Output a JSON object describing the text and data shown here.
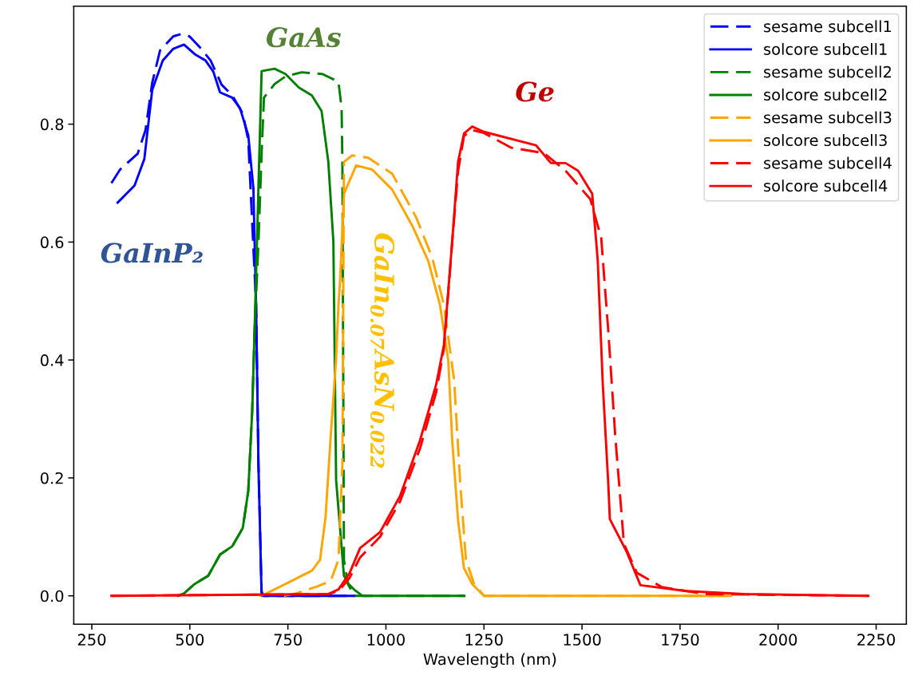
{
  "chart_data": {
    "type": "line",
    "xlabel": "Wavelength (nm)",
    "xlim": [
      204,
      2327
    ],
    "xticks": [
      250,
      500,
      750,
      1000,
      1250,
      1500,
      1750,
      2000,
      2250
    ],
    "ylim": [
      -0.048,
      1.0
    ],
    "yticks": [
      {
        "value": 0,
        "label": "0.0"
      },
      0.2,
      0.4,
      0.6,
      0.8
    ],
    "grid": false,
    "legend": "top right",
    "annotations": [
      "GaInP₂",
      "GaAs",
      "GaIn$_{0.07}$AsN$_{0.022}$",
      "Ge"
    ],
    "series": [
      {
        "name": "sesame subcell1",
        "color": "#0000ff",
        "line_style": "dashed",
        "x": [
          300,
          322,
          367,
          387,
          404,
          424,
          458,
          479,
          499,
          526,
          553,
          581,
          608,
          635,
          649,
          669,
          675,
          683,
          689,
          920
        ],
        "values": [
          0.7,
          0.723,
          0.75,
          0.79,
          0.87,
          0.925,
          0.949,
          0.953,
          0.949,
          0.93,
          0.908,
          0.867,
          0.849,
          0.818,
          0.773,
          0.493,
          0.223,
          0.007,
          0,
          0
        ]
      },
      {
        "name": "solcore subcell1",
        "color": "#0000ff",
        "line_style": "solid",
        "x": [
          316,
          359,
          384,
          404,
          431,
          458,
          485,
          512,
          540,
          560,
          577,
          608,
          628,
          649,
          662,
          669,
          675,
          683,
          920
        ],
        "values": [
          0.667,
          0.696,
          0.741,
          0.858,
          0.908,
          0.928,
          0.935,
          0.919,
          0.908,
          0.889,
          0.854,
          0.845,
          0.827,
          0.781,
          0.692,
          0.49,
          0.22,
          0,
          0
        ]
      },
      {
        "name": "sesame subcell2",
        "color": "#008000",
        "line_style": "dashed",
        "x": [
          470,
          485,
          512,
          547,
          577,
          608,
          635,
          649,
          659,
          665,
          675,
          683,
          689,
          716,
          744,
          785,
          838,
          879,
          887,
          889,
          893,
          903,
          920,
          1050,
          1200
        ],
        "values": [
          0,
          0.004,
          0.02,
          0.034,
          0.07,
          0.084,
          0.115,
          0.178,
          0.313,
          0.449,
          0.6,
          0.75,
          0.845,
          0.868,
          0.881,
          0.888,
          0.885,
          0.872,
          0.827,
          0.736,
          0.061,
          0.02,
          0,
          0,
          0
        ]
      },
      {
        "name": "solcore subcell2",
        "color": "#008000",
        "line_style": "solid",
        "x": [
          470,
          485,
          512,
          547,
          577,
          608,
          635,
          649,
          659,
          665,
          683,
          716,
          744,
          778,
          811,
          836,
          853,
          866,
          873,
          893,
          905,
          920,
          940,
          1050,
          1200
        ],
        "values": [
          0,
          0.004,
          0.02,
          0.034,
          0.07,
          0.084,
          0.115,
          0.178,
          0.313,
          0.449,
          0.89,
          0.894,
          0.885,
          0.862,
          0.849,
          0.822,
          0.737,
          0.601,
          0.196,
          0.034,
          0.02,
          0.01,
          0,
          0,
          0
        ]
      },
      {
        "name": "sesame subcell3",
        "color": "#ffa500",
        "line_style": "dashed",
        "x": [
          740,
          771,
          825,
          859,
          879,
          889,
          893,
          914,
          955,
          1016,
          1077,
          1118,
          1148,
          1174,
          1189,
          1204,
          1225,
          1250,
          1880
        ],
        "values": [
          0,
          0.004,
          0.016,
          0.025,
          0.061,
          0.223,
          0.736,
          0.747,
          0.743,
          0.716,
          0.642,
          0.574,
          0.493,
          0.365,
          0.196,
          0.061,
          0.02,
          0,
          0
        ]
      },
      {
        "name": "solcore subcell3",
        "color": "#ffa500",
        "line_style": "solid",
        "x": [
          680,
          695,
          744,
          791,
          812,
          832,
          846,
          859,
          873,
          879,
          883,
          893,
          924,
          965,
          1016,
          1067,
          1108,
          1138,
          1159,
          1169,
          1184,
          1199,
          1220,
          1250,
          1880
        ],
        "values": [
          0,
          0.004,
          0.02,
          0.036,
          0.043,
          0.061,
          0.133,
          0.268,
          0.403,
          0.493,
          0.534,
          0.682,
          0.73,
          0.723,
          0.689,
          0.628,
          0.568,
          0.493,
          0.399,
          0.264,
          0.128,
          0.047,
          0.02,
          0,
          0
        ]
      },
      {
        "name": "sesame subcell4",
        "color": "#ff0000",
        "line_style": "dashed",
        "x": [
          300,
          853,
          879,
          907,
          934,
          985,
          1036,
          1087,
          1128,
          1148,
          1169,
          1184,
          1199,
          1220,
          1250,
          1320,
          1403,
          1458,
          1521,
          1549,
          1567,
          1585,
          1607,
          1640,
          1703,
          1813,
          2230
        ],
        "values": [
          0,
          0.003,
          0.008,
          0.03,
          0.065,
          0.1,
          0.16,
          0.25,
          0.345,
          0.42,
          0.6,
          0.72,
          0.78,
          0.79,
          0.785,
          0.76,
          0.751,
          0.721,
          0.673,
          0.607,
          0.449,
          0.269,
          0.088,
          0.039,
          0.015,
          0.003,
          0
        ]
      },
      {
        "name": "solcore subcell4",
        "color": "#ff0000",
        "line_style": "solid",
        "x": [
          300,
          853,
          879,
          907,
          934,
          985,
          1036,
          1087,
          1128,
          1148,
          1169,
          1184,
          1199,
          1220,
          1250,
          1383,
          1413,
          1421,
          1458,
          1490,
          1526,
          1540,
          1553,
          1567,
          1571,
          1613,
          1649,
          1767,
          1913,
          2230
        ],
        "values": [
          0,
          0.003,
          0.011,
          0.038,
          0.081,
          0.108,
          0.169,
          0.264,
          0.358,
          0.426,
          0.601,
          0.736,
          0.784,
          0.796,
          0.787,
          0.764,
          0.74,
          0.734,
          0.734,
          0.721,
          0.682,
          0.57,
          0.359,
          0.19,
          0.13,
          0.076,
          0.018,
          0.008,
          0.003,
          0
        ]
      }
    ]
  }
}
